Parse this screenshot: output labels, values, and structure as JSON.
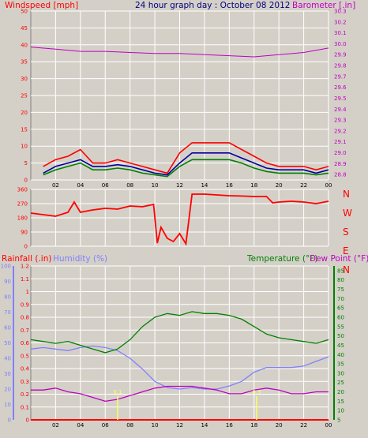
{
  "colors": {
    "background": "#d4d0c8",
    "plot_bg": "#d4d0c8",
    "grid": "#ffffff",
    "wind_gust": "#ff0000",
    "wind_avg": "#008000",
    "wind_mid": "#0000a0",
    "barometer": "#c000c0",
    "direction": "#ff0000",
    "rainfall": "#ff0000",
    "humidity": "#8080ff",
    "temperature": "#008000",
    "dew_point": "#c000c0",
    "date_title": "#000080"
  },
  "top": {
    "title_left": "Windspeed [mph]",
    "title_center": "24 hour graph day : October 08 2012",
    "title_right": "Barometer [.in]"
  },
  "middle": {
    "compass": [
      "N",
      "W",
      "S",
      "E",
      "N"
    ]
  },
  "bottom": {
    "label_rainfall": "Rainfall (.in)",
    "label_humidity": "Humidity (%)",
    "label_temperature": "Temperature (°F)",
    "label_dewpoint": "Dew Point (°F)"
  },
  "chart_data": [
    {
      "type": "line",
      "name": "windspeed-barometer",
      "x": [
        1.0,
        2.0,
        3.0,
        4.0,
        5.0,
        6.0,
        7.0,
        8.0,
        9.0,
        10.0,
        11.0,
        12.0,
        13.0,
        14.0,
        15.0,
        16.0,
        17.0,
        18.0,
        19.0,
        20.0,
        21.0,
        22.0,
        23.0,
        24.0
      ],
      "xticks": [
        "02",
        "04",
        "06",
        "08",
        "10",
        "12",
        "14",
        "16",
        "18",
        "20",
        "22",
        "00"
      ],
      "xlim": [
        0,
        24
      ],
      "ylim": [
        0,
        50
      ],
      "yticks": [
        0,
        5,
        10,
        15,
        20,
        25,
        30,
        35,
        40,
        45,
        50
      ],
      "y2lim": [
        28.75,
        30.3
      ],
      "y2ticks": [
        28.8,
        28.9,
        29.0,
        29.1,
        29.2,
        29.3,
        29.4,
        29.5,
        29.6,
        29.7,
        29.8,
        29.9,
        30.0,
        30.1,
        30.2,
        30.3
      ],
      "series": [
        {
          "role": "gust",
          "values": [
            4,
            6,
            7,
            9,
            5,
            5,
            6,
            5,
            4,
            3,
            2,
            8,
            11,
            11,
            11,
            11,
            9,
            7,
            5,
            4,
            4,
            4,
            3,
            4
          ]
        },
        {
          "role": "average",
          "values": [
            1.5,
            3,
            4,
            5,
            3,
            3,
            3.5,
            3,
            2,
            1.5,
            1,
            4,
            6,
            6,
            6,
            6,
            5,
            3.5,
            2.5,
            2,
            2,
            2,
            1.5,
            2
          ]
        },
        {
          "role": "mid",
          "values": [
            2,
            4,
            5,
            6,
            4,
            4,
            4.5,
            4,
            3,
            2,
            1.5,
            5,
            8,
            8,
            8,
            8,
            6.5,
            5,
            3.5,
            3,
            3,
            3,
            2,
            3
          ]
        },
        {
          "role": "barometer",
          "axis": "y2",
          "x": [
            0,
            2,
            4,
            6,
            8,
            10,
            12,
            14,
            16,
            18,
            20,
            22,
            24
          ],
          "values": [
            29.97,
            29.95,
            29.93,
            29.93,
            29.92,
            29.91,
            29.91,
            29.9,
            29.89,
            29.88,
            29.9,
            29.92,
            29.96
          ]
        }
      ]
    },
    {
      "type": "line",
      "name": "wind-direction",
      "xlim": [
        0,
        24
      ],
      "ylim": [
        0,
        360
      ],
      "yticks": [
        0,
        90,
        180,
        270,
        360
      ],
      "x": [
        0,
        1,
        2,
        3,
        3.5,
        4,
        5,
        6,
        7,
        8,
        9,
        9.9,
        10.2,
        10.5,
        11,
        11.5,
        12,
        12.5,
        13,
        14,
        15,
        16,
        17,
        18,
        19,
        19.5,
        20,
        21,
        22,
        23,
        24
      ],
      "values": [
        210,
        200,
        190,
        215,
        280,
        215,
        230,
        240,
        235,
        255,
        250,
        265,
        20,
        120,
        50,
        30,
        80,
        15,
        330,
        330,
        325,
        320,
        318,
        315,
        315,
        275,
        280,
        285,
        280,
        270,
        285
      ]
    },
    {
      "type": "line",
      "name": "temp-humidity-rain",
      "xlim": [
        0,
        24
      ],
      "xticks": [
        "02",
        "04",
        "06",
        "08",
        "10",
        "12",
        "14",
        "16",
        "18",
        "20",
        "22",
        "00"
      ],
      "ylim_rain": [
        0,
        1.2
      ],
      "yticks_rain": [
        0,
        0.1,
        0.2,
        0.3,
        0.4,
        0.5,
        0.6,
        0.7,
        0.8,
        0.9,
        1,
        1.1,
        1.2
      ],
      "ylim_humidity": [
        0,
        100
      ],
      "yticks_humidity": [
        0,
        10,
        20,
        30,
        40,
        50,
        60,
        70,
        80,
        90,
        100
      ],
      "ylim_temp": [
        5,
        87.5
      ],
      "yticks_temp": [
        5,
        10,
        15,
        20,
        25,
        30,
        35,
        40,
        45,
        50,
        55,
        60,
        65,
        70,
        75,
        80,
        85
      ],
      "x": [
        0,
        1,
        2,
        3,
        4,
        5,
        6,
        7,
        8,
        9,
        10,
        11,
        12,
        13,
        14,
        15,
        16,
        17,
        18,
        19,
        20,
        21,
        22,
        23,
        24
      ],
      "series": [
        {
          "role": "rainfall",
          "values": [
            0,
            0,
            0,
            0,
            0,
            0,
            0,
            0,
            0,
            0,
            0,
            0,
            0,
            0,
            0,
            0,
            0,
            0,
            0,
            0,
            0,
            0,
            0,
            0,
            0
          ]
        },
        {
          "role": "humidity",
          "values": [
            46,
            47,
            46,
            45,
            47,
            48,
            47,
            45,
            40,
            33,
            25,
            21,
            20,
            21,
            20,
            20,
            22,
            25,
            31,
            34,
            34,
            34,
            35,
            38,
            41
          ]
        },
        {
          "role": "temperature",
          "values": [
            48,
            47,
            46,
            47,
            45,
            43,
            41,
            43,
            48,
            55,
            60,
            62,
            61,
            63,
            62,
            62,
            61,
            59,
            55,
            51,
            49,
            48,
            47,
            46,
            48
          ]
        },
        {
          "role": "dewpoint",
          "values": [
            21,
            21,
            22,
            20,
            19,
            17,
            15,
            16,
            18,
            20,
            22,
            23,
            23,
            23,
            22,
            21,
            19,
            19,
            21,
            22,
            21,
            19,
            19,
            20,
            20
          ]
        }
      ],
      "markers": [
        {
          "x": 7,
          "value": "0.1"
        },
        {
          "x": 18.2,
          "value": "0.3"
        }
      ]
    }
  ]
}
